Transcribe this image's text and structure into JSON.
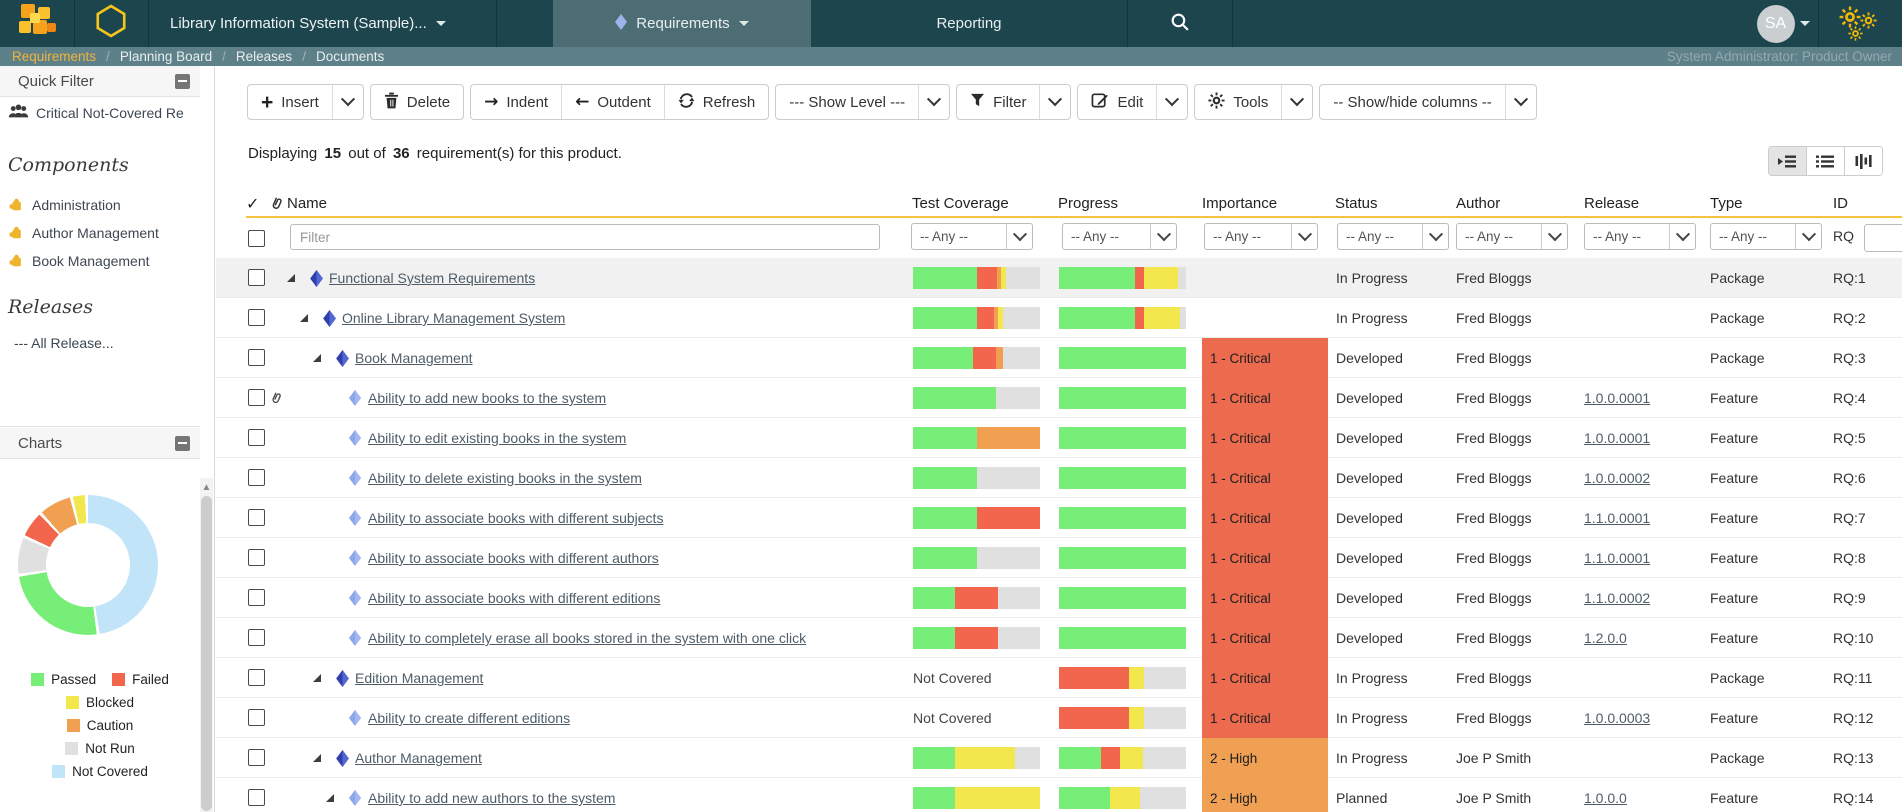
{
  "colors": {
    "topbar": "#1c454e",
    "tab_active": "#4d6d75",
    "breadcrumb_bar": "#5e8089",
    "breadcrumb_active": "#f2b33d",
    "accent_yellow": "#f5c242",
    "bars": {
      "passed": "#77ee77",
      "failed": "#f2664d",
      "blocked": "#f2e84e",
      "caution": "#f0a050",
      "not_run": "#e0e0e0",
      "not_covered": "#c2e4f8"
    },
    "importance": {
      "critical": "#ec6a4e",
      "high": "#efa053"
    }
  },
  "topbar": {
    "product_selector": "Library Information System (Sample)...",
    "tabs": [
      {
        "label": "Requirements",
        "active": true
      },
      {
        "label": "Reporting",
        "active": false
      }
    ],
    "avatar_initials": "SA"
  },
  "breadcrumb": {
    "items": [
      "Requirements",
      "Planning Board",
      "Releases",
      "Documents"
    ],
    "user_role": "System Administrator: Product Owner"
  },
  "sidebar": {
    "quick_filter": {
      "title": "Quick Filter",
      "item": "Critical Not-Covered Re"
    },
    "components": {
      "title": "Components",
      "items": [
        "Administration",
        "Author Management",
        "Book Management"
      ]
    },
    "releases": {
      "title": "Releases",
      "items": [
        "--- All Release..."
      ]
    },
    "charts": {
      "title": "Charts"
    }
  },
  "toolbar": {
    "insert": "Insert",
    "delete": "Delete",
    "indent": "Indent",
    "outdent": "Outdent",
    "refresh": "Refresh",
    "show_level": "--- Show Level ---",
    "filter": "Filter",
    "edit": "Edit",
    "tools": "Tools",
    "show_hide": "-- Show/hide columns --"
  },
  "summary": {
    "prefix": "Displaying",
    "count": "15",
    "middle": "out of",
    "total": "36",
    "suffix": "requirement(s) for this product."
  },
  "table": {
    "headers": {
      "name": "Name",
      "test_coverage": "Test Coverage",
      "progress": "Progress",
      "importance": "Importance",
      "status": "Status",
      "author": "Author",
      "release": "Release",
      "type": "Type",
      "id": "ID"
    },
    "filter": {
      "name_placeholder": "Filter",
      "any": "-- Any --",
      "id_prefix": "RQ"
    },
    "rows": [
      {
        "name": "Functional System Requirements",
        "level": 1,
        "expander": true,
        "icon": "package",
        "attachment": false,
        "shaded": true,
        "test_coverage": {
          "segments": [
            [
              "passed",
              50
            ],
            [
              "failed",
              16
            ],
            [
              "caution",
              3
            ],
            [
              "blocked",
              4
            ],
            [
              "not_run",
              27
            ]
          ]
        },
        "progress": {
          "segments": [
            [
              "passed",
              60
            ],
            [
              "failed",
              7
            ],
            [
              "blocked",
              27
            ],
            [
              "not_run",
              6
            ]
          ]
        },
        "importance": null,
        "status": "In Progress",
        "author": "Fred Bloggs",
        "release": "",
        "type": "Package",
        "id": "RQ:1"
      },
      {
        "name": "Online Library Management System",
        "level": 2,
        "expander": true,
        "icon": "package",
        "attachment": false,
        "shaded": false,
        "test_coverage": {
          "segments": [
            [
              "passed",
              50
            ],
            [
              "failed",
              14
            ],
            [
              "caution",
              3
            ],
            [
              "blocked",
              4
            ],
            [
              "not_run",
              29
            ]
          ]
        },
        "progress": {
          "segments": [
            [
              "passed",
              60
            ],
            [
              "failed",
              7
            ],
            [
              "blocked",
              28
            ],
            [
              "not_run",
              5
            ]
          ]
        },
        "importance": null,
        "status": "In Progress",
        "author": "Fred Bloggs",
        "release": "",
        "type": "Package",
        "id": "RQ:2"
      },
      {
        "name": "Book Management",
        "level": 3,
        "expander": true,
        "icon": "package",
        "attachment": false,
        "shaded": false,
        "test_coverage": {
          "segments": [
            [
              "passed",
              47
            ],
            [
              "failed",
              18
            ],
            [
              "caution",
              6
            ],
            [
              "not_run",
              29
            ]
          ]
        },
        "progress": {
          "segments": [
            [
              "passed",
              100
            ]
          ]
        },
        "importance": {
          "label": "1 - Critical",
          "level": "critical"
        },
        "status": "Developed",
        "author": "Fred Bloggs",
        "release": "",
        "type": "Package",
        "id": "RQ:3"
      },
      {
        "name": "Ability to add new books to the system",
        "level": 4,
        "expander": false,
        "icon": "feature",
        "attachment": true,
        "shaded": false,
        "test_coverage": {
          "segments": [
            [
              "passed",
              65
            ],
            [
              "not_run",
              35
            ]
          ]
        },
        "progress": {
          "segments": [
            [
              "passed",
              100
            ]
          ]
        },
        "importance": {
          "label": "1 - Critical",
          "level": "critical"
        },
        "status": "Developed",
        "author": "Fred Bloggs",
        "release": "1.0.0.0001",
        "type": "Feature",
        "id": "RQ:4"
      },
      {
        "name": "Ability to edit existing books in the system",
        "level": 4,
        "expander": false,
        "icon": "feature",
        "attachment": false,
        "shaded": false,
        "test_coverage": {
          "segments": [
            [
              "passed",
              50
            ],
            [
              "caution",
              50
            ]
          ]
        },
        "progress": {
          "segments": [
            [
              "passed",
              100
            ]
          ]
        },
        "importance": {
          "label": "1 - Critical",
          "level": "critical"
        },
        "status": "Developed",
        "author": "Fred Bloggs",
        "release": "1.0.0.0001",
        "type": "Feature",
        "id": "RQ:5"
      },
      {
        "name": "Ability to delete existing books in the system",
        "level": 4,
        "expander": false,
        "icon": "feature",
        "attachment": false,
        "shaded": false,
        "test_coverage": {
          "segments": [
            [
              "passed",
              50
            ],
            [
              "not_run",
              50
            ]
          ]
        },
        "progress": {
          "segments": [
            [
              "passed",
              100
            ]
          ]
        },
        "importance": {
          "label": "1 - Critical",
          "level": "critical"
        },
        "status": "Developed",
        "author": "Fred Bloggs",
        "release": "1.0.0.0002",
        "type": "Feature",
        "id": "RQ:6"
      },
      {
        "name": "Ability to associate books with different subjects",
        "level": 4,
        "expander": false,
        "icon": "feature",
        "attachment": false,
        "shaded": false,
        "test_coverage": {
          "segments": [
            [
              "passed",
              50
            ],
            [
              "failed",
              50
            ]
          ]
        },
        "progress": {
          "segments": [
            [
              "passed",
              100
            ]
          ]
        },
        "importance": {
          "label": "1 - Critical",
          "level": "critical"
        },
        "status": "Developed",
        "author": "Fred Bloggs",
        "release": "1.1.0.0001",
        "type": "Feature",
        "id": "RQ:7"
      },
      {
        "name": "Ability to associate books with different authors",
        "level": 4,
        "expander": false,
        "icon": "feature",
        "attachment": false,
        "shaded": false,
        "test_coverage": {
          "segments": [
            [
              "passed",
              50
            ],
            [
              "not_run",
              50
            ]
          ]
        },
        "progress": {
          "segments": [
            [
              "passed",
              100
            ]
          ]
        },
        "importance": {
          "label": "1 - Critical",
          "level": "critical"
        },
        "status": "Developed",
        "author": "Fred Bloggs",
        "release": "1.1.0.0001",
        "type": "Feature",
        "id": "RQ:8"
      },
      {
        "name": "Ability to associate books with different editions",
        "level": 4,
        "expander": false,
        "icon": "feature",
        "attachment": false,
        "shaded": false,
        "test_coverage": {
          "segments": [
            [
              "passed",
              33
            ],
            [
              "failed",
              34
            ],
            [
              "not_run",
              33
            ]
          ]
        },
        "progress": {
          "segments": [
            [
              "passed",
              100
            ]
          ]
        },
        "importance": {
          "label": "1 - Critical",
          "level": "critical"
        },
        "status": "Developed",
        "author": "Fred Bloggs",
        "release": "1.1.0.0002",
        "type": "Feature",
        "id": "RQ:9"
      },
      {
        "name": "Ability to completely erase all books stored in the system with one click",
        "level": 4,
        "expander": false,
        "icon": "feature",
        "attachment": false,
        "shaded": false,
        "test_coverage": {
          "segments": [
            [
              "passed",
              33
            ],
            [
              "failed",
              34
            ],
            [
              "not_run",
              33
            ]
          ]
        },
        "progress": {
          "segments": [
            [
              "passed",
              100
            ]
          ]
        },
        "importance": {
          "label": "1 - Critical",
          "level": "critical"
        },
        "status": "Developed",
        "author": "Fred Bloggs",
        "release": "1.2.0.0",
        "type": "Feature",
        "id": "RQ:10"
      },
      {
        "name": "Edition Management",
        "level": 3,
        "expander": true,
        "icon": "package",
        "attachment": false,
        "shaded": false,
        "test_coverage": {
          "text": "Not Covered"
        },
        "progress": {
          "segments": [
            [
              "failed",
              55
            ],
            [
              "blocked",
              12
            ],
            [
              "not_run",
              33
            ]
          ]
        },
        "importance": {
          "label": "1 - Critical",
          "level": "critical"
        },
        "status": "In Progress",
        "author": "Fred Bloggs",
        "release": "",
        "type": "Package",
        "id": "RQ:11"
      },
      {
        "name": "Ability to create different editions",
        "level": 4,
        "expander": false,
        "icon": "feature",
        "attachment": false,
        "shaded": false,
        "test_coverage": {
          "text": "Not Covered"
        },
        "progress": {
          "segments": [
            [
              "failed",
              55
            ],
            [
              "blocked",
              12
            ],
            [
              "not_run",
              33
            ]
          ]
        },
        "importance": {
          "label": "1 - Critical",
          "level": "critical"
        },
        "status": "In Progress",
        "author": "Fred Bloggs",
        "release": "1.0.0.0003",
        "type": "Feature",
        "id": "RQ:12"
      },
      {
        "name": "Author Management",
        "level": 3,
        "expander": true,
        "icon": "package",
        "attachment": false,
        "shaded": false,
        "test_coverage": {
          "segments": [
            [
              "passed",
              33
            ],
            [
              "blocked",
              47
            ],
            [
              "not_run",
              20
            ]
          ]
        },
        "progress": {
          "segments": [
            [
              "passed",
              33
            ],
            [
              "failed",
              15
            ],
            [
              "blocked",
              18
            ],
            [
              "not_run",
              34
            ]
          ]
        },
        "importance": {
          "label": "2 - High",
          "level": "high"
        },
        "status": "In Progress",
        "author": "Joe P Smith",
        "release": "",
        "type": "Package",
        "id": "RQ:13"
      },
      {
        "name": "Ability to add new authors to the system",
        "level": 4,
        "expander": true,
        "icon": "feature",
        "attachment": false,
        "shaded": false,
        "test_coverage": {
          "segments": [
            [
              "passed",
              33
            ],
            [
              "blocked",
              67
            ]
          ]
        },
        "progress": {
          "segments": [
            [
              "passed",
              40
            ],
            [
              "blocked",
              24
            ],
            [
              "not_run",
              36
            ]
          ]
        },
        "importance": {
          "label": "2 - High",
          "level": "high"
        },
        "status": "Planned",
        "author": "Joe P Smith",
        "release": "1.0.0.0",
        "type": "Feature",
        "id": "RQ:14"
      }
    ]
  },
  "chart_data": {
    "type": "pie",
    "donut": true,
    "legend_position": "bottom",
    "labels": [
      "Passed",
      "Failed",
      "Blocked",
      "Caution",
      "Not Run",
      "Not Covered"
    ],
    "values_pct": [
      25,
      6.5,
      3.5,
      8,
      9,
      48
    ],
    "colors": [
      "#77ee77",
      "#f2664d",
      "#f2e84e",
      "#f0a050",
      "#e0e0e0",
      "#c2e4f8"
    ],
    "draw_order_from_top": [
      "Not Covered",
      "Passed",
      "Not Run",
      "Failed",
      "Caution",
      "Blocked"
    ]
  }
}
